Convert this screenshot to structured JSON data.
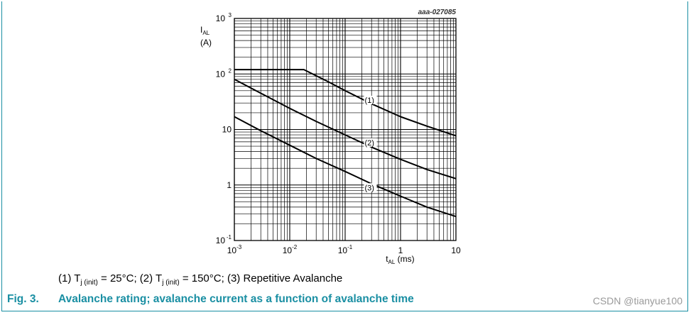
{
  "chart_data": {
    "type": "line",
    "code": "aaa-027085",
    "x_scale": "log",
    "y_scale": "log",
    "xlim": [
      0.001,
      10
    ],
    "ylim": [
      0.1,
      1000
    ],
    "ylabel": {
      "main": "I",
      "sub": "AL",
      "unit": "(A)"
    },
    "xlabel": {
      "main": "t",
      "sub": "AL",
      "unit": " (ms)"
    },
    "x_ticks": [
      {
        "base": "10",
        "exp": "-3"
      },
      {
        "base": "10",
        "exp": "-2"
      },
      {
        "base": "10",
        "exp": "-1"
      },
      {
        "base": "1",
        "exp": ""
      },
      {
        "base": "10",
        "exp": ""
      }
    ],
    "y_ticks": [
      {
        "base": "10",
        "exp": "-1"
      },
      {
        "base": "1",
        "exp": ""
      },
      {
        "base": "10",
        "exp": ""
      },
      {
        "base": "10",
        "exp": "2"
      },
      {
        "base": "10",
        "exp": "3"
      }
    ],
    "series": [
      {
        "name": "(1)",
        "label_at": [
          0.2,
          32
        ],
        "x": [
          0.001,
          0.018,
          0.05,
          0.1,
          0.3,
          1,
          3,
          10
        ],
        "y": [
          120,
          120,
          72,
          50,
          29,
          17,
          11.5,
          7.7
        ]
      },
      {
        "name": "(2)",
        "label_at": [
          0.2,
          5.5
        ],
        "x": [
          0.001,
          0.003,
          0.01,
          0.03,
          0.1,
          0.3,
          1,
          3,
          10
        ],
        "y": [
          80,
          45,
          24,
          14,
          8,
          4.8,
          2.9,
          1.9,
          1.3
        ]
      },
      {
        "name": "(3)",
        "label_at": [
          0.2,
          0.85
        ],
        "x": [
          0.001,
          0.003,
          0.01,
          0.03,
          0.1,
          0.3,
          1,
          3,
          10
        ],
        "y": [
          17,
          9.5,
          5.2,
          3,
          1.75,
          1.05,
          0.63,
          0.4,
          0.27
        ]
      }
    ]
  },
  "legend": {
    "part1": "(1) T",
    "sub1": "j (init)",
    "part2": " = 25°C; (2) T",
    "sub2": "j (init)",
    "part3": " = 150°C; (3) Repetitive Avalanche"
  },
  "caption": {
    "fig": "Fig. 3.",
    "text": "Avalanche rating; avalanche current as a function of avalanche time"
  },
  "watermark": "CSDN @tianyue100",
  "colors": {
    "accent": "#1a8fa3",
    "grid": "#000000",
    "curve": "#000000"
  }
}
